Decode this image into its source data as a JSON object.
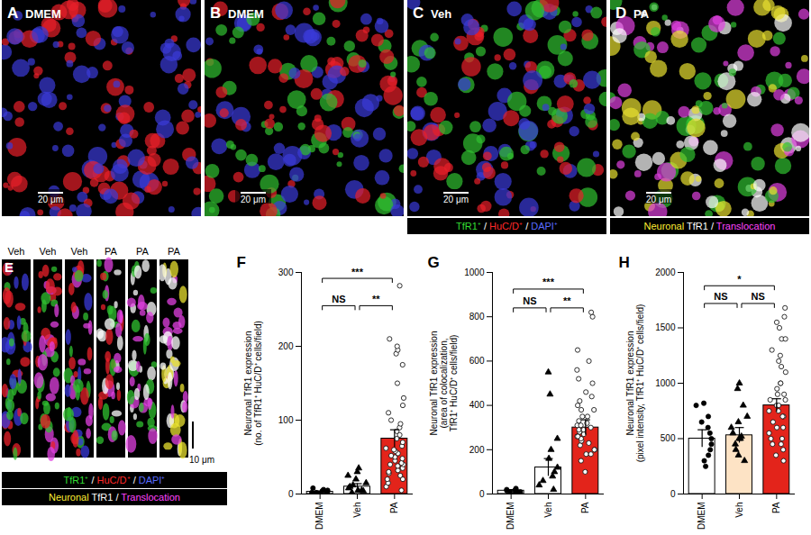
{
  "images": [
    {
      "panel": "A",
      "label": "DMEM",
      "scale_bar": "20 μm",
      "colors": [
        "#e8202a",
        "#3a3ad8"
      ]
    },
    {
      "panel": "B",
      "label": "DMEM",
      "scale_bar": "20 μm",
      "colors": [
        "#e8202a",
        "#3a3ad8",
        "#30c030"
      ]
    },
    {
      "panel": "C",
      "label": "Veh",
      "scale_bar": "20 μm",
      "colors": [
        "#e8202a",
        "#3a3ad8",
        "#30c030"
      ]
    },
    {
      "panel": "D",
      "label": "PA",
      "scale_bar": "20 μm",
      "colors": [
        "#e8e030",
        "#30c030",
        "#e040e0",
        "#ffffff"
      ]
    }
  ],
  "image_legends": [
    [
      {
        "text": "TfR1⁺",
        "color": "#33dd33"
      },
      {
        "text": " / ",
        "color": "#ffffff"
      },
      {
        "text": "HuC/D⁺",
        "color": "#ff2a2a"
      },
      {
        "text": " / ",
        "color": "#ffffff"
      },
      {
        "text": "DAPI⁺",
        "color": "#5a6cff"
      }
    ],
    [
      {
        "text": "Neuronal ",
        "color": "#ffee33"
      },
      {
        "text": "TfR1",
        "color": "#ffffff"
      },
      {
        "text": " / ",
        "color": "#ffffff"
      },
      {
        "text": "Translocation",
        "color": "#ff44ff"
      }
    ]
  ],
  "stack_panel": {
    "panel": "E",
    "columns": [
      {
        "label": "Veh",
        "colors": [
          "#e8202a",
          "#30c030",
          "#3a3ad8"
        ]
      },
      {
        "label": "Veh",
        "colors": [
          "#e8202a",
          "#30c030",
          "#e040e0"
        ]
      },
      {
        "label": "Veh",
        "colors": [
          "#e8202a",
          "#30c030",
          "#3a3ad8",
          "#e040e0"
        ]
      },
      {
        "label": "PA",
        "colors": [
          "#30c030",
          "#e040e0",
          "#ffffff",
          "#e8202a"
        ]
      },
      {
        "label": "PA",
        "colors": [
          "#ffffff",
          "#e040e0",
          "#30c030"
        ]
      },
      {
        "label": "PA",
        "colors": [
          "#ffffff",
          "#e040e0",
          "#e8e030"
        ]
      }
    ],
    "scale_bar": "10 μm",
    "legends": [
      [
        {
          "text": "TfR1⁺",
          "color": "#33dd33"
        },
        {
          "text": " / ",
          "color": "#ffffff"
        },
        {
          "text": "HuC/D⁺",
          "color": "#ff2a2a"
        },
        {
          "text": " / ",
          "color": "#ffffff"
        },
        {
          "text": "DAPI⁺",
          "color": "#5a6cff"
        }
      ],
      [
        {
          "text": "Neuronal ",
          "color": "#ffee33"
        },
        {
          "text": "TfR1",
          "color": "#ffffff"
        },
        {
          "text": " / ",
          "color": "#ffffff"
        },
        {
          "text": "Translocation",
          "color": "#ff44ff"
        }
      ]
    ]
  },
  "chart_data": [
    {
      "panel": "F",
      "type": "bar",
      "ylabel": [
        "Neuronal TfR1 expression",
        "(no. of TfR1⁺ HuC/D⁺ cells/field)"
      ],
      "categories": [
        "DMEM",
        "Veh",
        "PA"
      ],
      "values": [
        3,
        10,
        75
      ],
      "errors": [
        1,
        4,
        12
      ],
      "colors": [
        "#ffffff",
        "#ffffff",
        "#e3241b"
      ],
      "points": [
        {
          "marker": "circle",
          "values": [
            0,
            1,
            2,
            3,
            4,
            5,
            6,
            8,
            3,
            2
          ]
        },
        {
          "marker": "triangle",
          "values": [
            2,
            4,
            5,
            8,
            10,
            12,
            15,
            20,
            25,
            30,
            35,
            5
          ]
        },
        {
          "marker": "open_circle",
          "values": [
            10,
            15,
            20,
            25,
            28,
            30,
            32,
            35,
            38,
            40,
            42,
            45,
            48,
            50,
            52,
            55,
            58,
            60,
            62,
            65,
            70,
            75,
            80,
            85,
            90,
            95,
            100,
            110,
            120,
            130,
            150,
            175,
            190,
            195,
            200,
            210,
            282,
            5,
            20,
            40
          ]
        }
      ],
      "ylim": [
        0,
        300
      ],
      "yticks": [
        0,
        100,
        200,
        300
      ],
      "comparisons": [
        {
          "from": "DMEM",
          "to": "Veh",
          "label": "NS",
          "y": 255
        },
        {
          "from": "Veh",
          "to": "PA",
          "label": "**",
          "y": 255
        },
        {
          "from": "DMEM",
          "to": "PA",
          "label": "***",
          "y": 292
        }
      ]
    },
    {
      "panel": "G",
      "type": "bar",
      "ylabel": [
        "Neuronal TfR1 expression",
        "(area of colocalization,",
        "TfR1⁺ HuC/D⁺ cells/field)"
      ],
      "categories": [
        "DMEM",
        "Veh",
        "PA"
      ],
      "values": [
        15,
        120,
        300
      ],
      "errors": [
        5,
        40,
        35
      ],
      "colors": [
        "#ffffff",
        "#ffffff",
        "#e3241b"
      ],
      "points": [
        {
          "marker": "circle",
          "values": [
            5,
            8,
            10,
            12,
            15,
            20,
            25,
            10,
            18
          ]
        },
        {
          "marker": "triangle",
          "values": [
            20,
            40,
            60,
            80,
            100,
            120,
            160,
            200,
            250,
            450,
            550
          ]
        },
        {
          "marker": "open_circle",
          "values": [
            100,
            150,
            180,
            200,
            220,
            240,
            250,
            260,
            270,
            280,
            290,
            300,
            310,
            320,
            330,
            350,
            380,
            400,
            420,
            440,
            460,
            500,
            520,
            560,
            600,
            650,
            800,
            820,
            180,
            230,
            260,
            290,
            310,
            350,
            380,
            200
          ]
        }
      ],
      "ylim": [
        0,
        1000
      ],
      "yticks": [
        0,
        200,
        400,
        600,
        800,
        1000
      ],
      "comparisons": [
        {
          "from": "DMEM",
          "to": "Veh",
          "label": "NS",
          "y": 840
        },
        {
          "from": "Veh",
          "to": "PA",
          "label": "**",
          "y": 840
        },
        {
          "from": "DMEM",
          "to": "PA",
          "label": "***",
          "y": 925
        }
      ]
    },
    {
      "panel": "H",
      "type": "bar",
      "ylabel": [
        "Neuronal TfR1 expression",
        "(pixel intensity, TfR1⁺ HuC/D⁺ cells/field)"
      ],
      "categories": [
        "DMEM",
        "Veh",
        "PA"
      ],
      "values": [
        500,
        530,
        800
      ],
      "errors": [
        80,
        70,
        60
      ],
      "colors": [
        "#ffffff",
        "#fde3c5",
        "#e3241b"
      ],
      "points": [
        {
          "marker": "circle",
          "values": [
            250,
            300,
            350,
            400,
            450,
            500,
            600,
            700,
            800,
            820,
            550,
            650
          ]
        },
        {
          "marker": "triangle",
          "values": [
            300,
            350,
            400,
            450,
            500,
            520,
            550,
            600,
            650,
            700,
            800,
            950,
            1000,
            500
          ]
        },
        {
          "marker": "open_circle",
          "values": [
            300,
            350,
            400,
            450,
            500,
            550,
            600,
            650,
            700,
            750,
            800,
            850,
            900,
            950,
            1000,
            1100,
            1200,
            1300,
            1400,
            1500,
            1550,
            1600,
            1680,
            700,
            750,
            600,
            500,
            900,
            1000,
            1150,
            1250,
            1400,
            450,
            800,
            850
          ]
        }
      ],
      "ylim": [
        0,
        2000
      ],
      "yticks": [
        0,
        500,
        1000,
        1500,
        2000
      ],
      "comparisons": [
        {
          "from": "DMEM",
          "to": "Veh",
          "label": "NS",
          "y": 1720
        },
        {
          "from": "Veh",
          "to": "PA",
          "label": "NS",
          "y": 1720
        },
        {
          "from": "DMEM",
          "to": "PA",
          "label": "*",
          "y": 1880
        }
      ]
    }
  ]
}
